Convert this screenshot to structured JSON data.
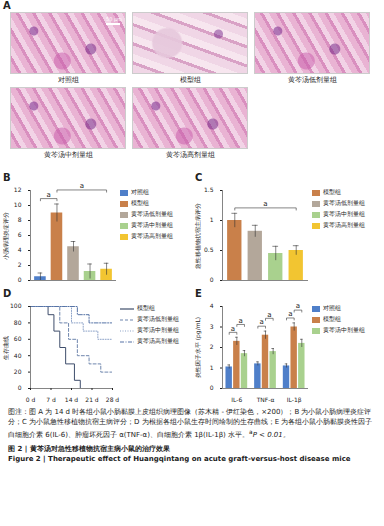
{
  "image_panel": {
    "label": "A",
    "scale_bar": "50 μm",
    "images": [
      "对照组",
      "模型组",
      "黄芩汤低剂量组",
      "黄芩汤中剂量组",
      "黄芩汤高剂量组"
    ]
  },
  "chart_data": [
    {
      "type": "bar",
      "title": "B",
      "y_label": "小肠病理炎症评分",
      "categories": [
        "对照组",
        "模型组",
        "黄芩汤低剂量组",
        "黄芩汤中剂量组",
        "黄芩汤高剂量组"
      ],
      "values": [
        0.5,
        9.0,
        4.5,
        1.2,
        1.5
      ],
      "errors": [
        0.5,
        1.2,
        0.7,
        1.0,
        0.8
      ],
      "colors": [
        "#4f7fc9",
        "#c9804a",
        "#b3a79a",
        "#a9d18e",
        "#f2c531"
      ],
      "ylim": [
        0,
        12
      ],
      "yticks": [
        0,
        2,
        4,
        6,
        8,
        10,
        12
      ],
      "tick_labels": "y",
      "brackets": [
        {
          "text": "a",
          "between": [
            "对照组",
            "模型组"
          ]
        },
        {
          "text": "a",
          "between": [
            "模型组",
            "黄芩汤高剂量组"
          ]
        }
      ]
    },
    {
      "type": "bar",
      "title": "C",
      "y_label": "急性移植物抗宿主病评分",
      "categories": [
        "模型组",
        "黄芩汤低剂量组",
        "黄芩汤中剂量组",
        "黄芩汤高剂量组"
      ],
      "values": [
        1.0,
        0.82,
        0.45,
        0.5
      ],
      "errors": [
        0.12,
        0.1,
        0.12,
        0.08
      ],
      "colors": [
        "#c9804a",
        "#b3a79a",
        "#a9d18e",
        "#f2c531"
      ],
      "ylim": [
        0,
        1.5
      ],
      "yticks": [
        0,
        0.5,
        1,
        1.5
      ],
      "tick_labels": "y",
      "brackets": [
        {
          "text": "a",
          "between": [
            "模型组",
            "黄芩汤高剂量组"
          ]
        }
      ]
    },
    {
      "type": "line",
      "title": "D",
      "y_label": "生存曲线",
      "xlim": [
        0,
        28
      ],
      "xticks": [
        {
          "value": 0,
          "label": "0 d"
        },
        {
          "value": 7,
          "label": "7 d"
        },
        {
          "value": 14,
          "label": "14 d"
        },
        {
          "value": 21,
          "label": "21 d"
        },
        {
          "value": 28,
          "label": "28 d"
        }
      ],
      "ylim": [
        0,
        100
      ],
      "yticks": [
        0,
        20,
        40,
        60,
        80,
        100
      ],
      "series": [
        {
          "name": "模型组",
          "color": "#3e4d6b",
          "line_style": "solid",
          "x": [
            0,
            5,
            6,
            8,
            10,
            12,
            15,
            17,
            28
          ],
          "values": [
            100,
            100,
            90,
            70,
            50,
            30,
            10,
            0,
            0
          ]
        },
        {
          "name": "黄芩汤低剂量组",
          "color": "#6f86ad",
          "line_style": "dashed",
          "x": [
            0,
            8,
            10,
            13,
            16,
            20,
            24,
            28
          ],
          "values": [
            100,
            100,
            80,
            60,
            40,
            30,
            20,
            20
          ]
        },
        {
          "name": "黄芩汤中剂量组",
          "color": "#8ea3c8",
          "line_style": "dotted",
          "x": [
            0,
            10,
            14,
            18,
            23,
            28
          ],
          "values": [
            100,
            100,
            80,
            70,
            60,
            60
          ]
        },
        {
          "name": "黄芩汤高剂量组",
          "color": "#5673a6",
          "line_style": "dashdot",
          "x": [
            0,
            12,
            16,
            20,
            28
          ],
          "values": [
            100,
            100,
            90,
            80,
            70
          ]
        }
      ]
    },
    {
      "type": "bar",
      "title": "E",
      "y_label": "炎性因子水平 (pg/mL)",
      "categories": [
        "IL-6",
        "TNF-α",
        "IL-1β"
      ],
      "ylim": [
        0,
        4
      ],
      "yticks": [
        0,
        1,
        2,
        3,
        4
      ],
      "series": [
        {
          "name": "对照组",
          "color": "#4f7fc9",
          "values": [
            1.05,
            1.2,
            1.1
          ],
          "errors": [
            0.1,
            0.1,
            0.1
          ]
        },
        {
          "name": "模型组",
          "color": "#c9804a",
          "values": [
            2.3,
            2.6,
            3.0
          ],
          "errors": [
            0.2,
            0.2,
            0.2
          ]
        },
        {
          "name": "黄芩汤中剂量组",
          "color": "#a9d18e",
          "values": [
            1.7,
            1.8,
            2.2
          ],
          "errors": [
            0.15,
            0.15,
            0.2
          ]
        }
      ],
      "brackets": [
        {
          "text": "a",
          "category": "IL-6",
          "between": [
            "对照组",
            "模型组"
          ]
        },
        {
          "text": "a",
          "category": "IL-6",
          "between": [
            "模型组",
            "黄芩汤中剂量组"
          ]
        },
        {
          "text": "a",
          "category": "TNF-α",
          "between": [
            "对照组",
            "模型组"
          ]
        },
        {
          "text": "a",
          "category": "TNF-α",
          "between": [
            "模型组",
            "黄芩汤中剂量组"
          ]
        },
        {
          "text": "a",
          "category": "IL-1β",
          "between": [
            "对照组",
            "模型组"
          ]
        },
        {
          "text": "a",
          "category": "IL-1β",
          "between": [
            "模型组",
            "黄芩汤中剂量组"
          ]
        }
      ]
    }
  ],
  "caption": {
    "note": "图注：图 A 为 14 d 时各组小鼠小肠黏膜上皮组织病理图像（苏木精 - 伊红染色，×200）；B 为小鼠小肠病理炎症评分；C 为小鼠急性移植物抗宿主病评分；D 为根据各组小鼠生存时间绘制的生存曲线；E 为各组小鼠小肠黏膜炎性因子白细胞介素 6(IL-6)、肿瘤坏死因子 α(TNF-α)、白细胞介素 1β(IL-1β) 水平。",
    "footnote_sup": "a",
    "footnote": "P < 0.01。",
    "title_cn": "图 2 | 黄芩汤对急性移植物抗宿主病小鼠的治疗效果",
    "title_en": "Figure 2 | Therapeutic effect of Huangqintang on acute graft-versus-host disease mice"
  }
}
